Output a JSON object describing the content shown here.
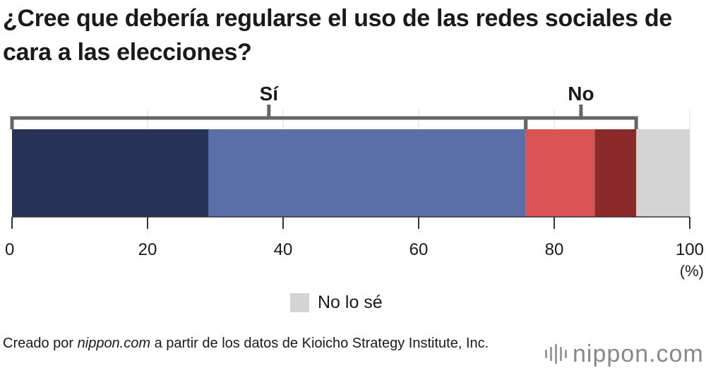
{
  "title": "¿Cree que debería regularse el uso de las redes sociales de cara a las elecciones?",
  "chart_data": {
    "type": "bar",
    "orientation": "horizontal-stacked",
    "title": "¿Cree que debería regularse el uso de las redes sociales de cara a las elecciones?",
    "unit_label": "(%)",
    "xlim": [
      0,
      100
    ],
    "ticks": [
      0,
      20,
      40,
      60,
      80,
      100
    ],
    "segments": [
      {
        "name": "",
        "value": 29.0,
        "color": "#263359"
      },
      {
        "name": "",
        "value": 46.8,
        "color": "#5a6ea8"
      },
      {
        "name": "",
        "value": 10.2,
        "color": "#da5454"
      },
      {
        "name": "",
        "value": 6.1,
        "color": "#8b2a2b"
      },
      {
        "name": "No lo sé",
        "value": 7.9,
        "color": "#d4d4d4"
      }
    ],
    "groups": [
      {
        "label": "Sí",
        "from": 0,
        "to": 75.8
      },
      {
        "label": "No",
        "from": 75.8,
        "to": 92.1
      }
    ]
  },
  "legend": [
    {
      "label": "No lo sé",
      "color": "#d4d4d4"
    }
  ],
  "source": {
    "prefix": "Creado por ",
    "site": "nippon.com",
    "suffix": " a partir de los datos de Kioicho Strategy Institute, Inc."
  },
  "logo": {
    "text": "nippon.com"
  }
}
